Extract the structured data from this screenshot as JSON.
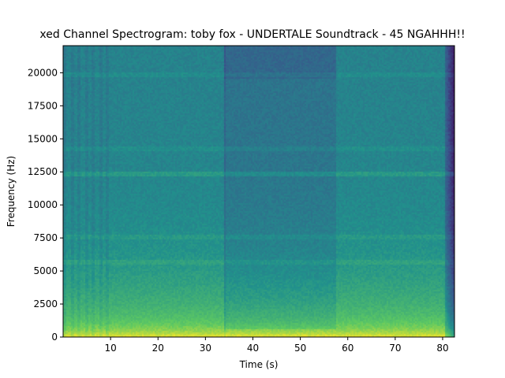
{
  "chart_data": {
    "type": "heatmap",
    "title": "xed Channel Spectrogram: toby fox - UNDERTALE Soundtrack - 45 NGAHHH!!",
    "xlabel": "Time (s)",
    "ylabel": "Frequency (Hz)",
    "xlim": [
      0,
      82.5
    ],
    "ylim": [
      0,
      22050
    ],
    "xticks": [
      10,
      20,
      30,
      40,
      50,
      60,
      70,
      80
    ],
    "xtick_labels": [
      "10",
      "20",
      "30",
      "40",
      "50",
      "60",
      "70",
      "80"
    ],
    "yticks": [
      0,
      2500,
      5000,
      7500,
      10000,
      12500,
      15000,
      17500,
      20000
    ],
    "ytick_labels": [
      "0",
      "2500",
      "5000",
      "7500",
      "10000",
      "12500",
      "15000",
      "17500",
      "20000"
    ],
    "colormap": "viridis",
    "colors": {
      "low": "#3b528b",
      "mid_low": "#2a788e",
      "mid": "#22a884",
      "mid_high": "#7ad151",
      "high": "#fde725"
    },
    "segments": [
      {
        "t_start": 0,
        "t_end": 10,
        "character": "sparse-intro"
      },
      {
        "t_start": 10,
        "t_end": 34,
        "character": "full-band"
      },
      {
        "t_start": 34,
        "t_end": 57.5,
        "character": "quieter-high-band"
      },
      {
        "t_start": 57.5,
        "t_end": 81,
        "character": "full-band"
      },
      {
        "t_start": 81,
        "t_end": 82.5,
        "character": "fade-out"
      }
    ],
    "bands_hz": [
      12300,
      7600,
      19800,
      14200,
      5700
    ],
    "grid": false,
    "legend": "none"
  }
}
